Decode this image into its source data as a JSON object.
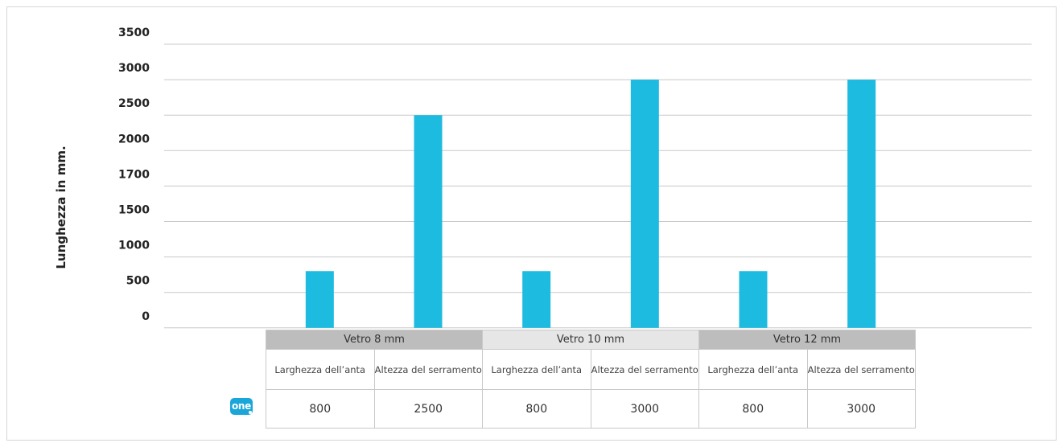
{
  "colors": {
    "bar": "#1ebbe0",
    "grid": "#c8c8c8",
    "group_dark": "#bdbdbd",
    "group_light": "#e6e6e6"
  },
  "logo": {
    "text": "one",
    "icon": "one-logo"
  },
  "table": {
    "groups": [
      "Vetro 8 mm",
      "Vetro 10 mm",
      "Vetro 12 mm"
    ],
    "columns": [
      "Larghezza dell’anta",
      "Altezza del serramento",
      "Larghezza dell’anta",
      "Altezza del serramento",
      "Larghezza dell’anta",
      "Altezza del serramento"
    ],
    "values": [
      "800",
      "2500",
      "800",
      "3000",
      "800",
      "3000"
    ]
  },
  "chart_data": {
    "type": "bar",
    "title": "",
    "xlabel": "",
    "ylabel": "Lunghezza in mm.",
    "ytick_labels": [
      "0",
      "500",
      "1000",
      "1500",
      "1700",
      "2000",
      "2500",
      "3000",
      "3500"
    ],
    "grid": true,
    "legend": "none",
    "groups": [
      "Vetro 8 mm",
      "Vetro 10 mm",
      "Vetro 12 mm"
    ],
    "categories": [
      "Larghezza dell’anta",
      "Altezza del serramento",
      "Larghezza dell’anta",
      "Altezza del serramento",
      "Larghezza dell’anta",
      "Altezza del serramento"
    ],
    "values": [
      800,
      2500,
      800,
      3000,
      800,
      3000
    ]
  }
}
